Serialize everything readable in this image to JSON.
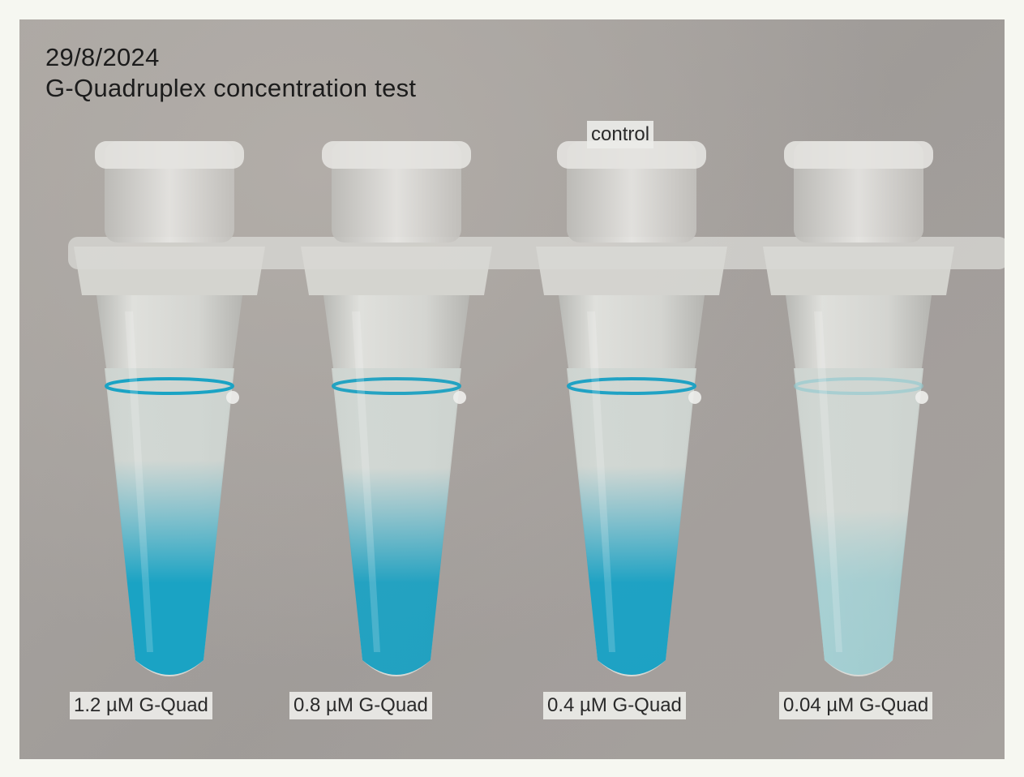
{
  "header": {
    "date": "29/8/2024",
    "title": "G-Quadruplex concentration test"
  },
  "control_label": "control",
  "tubes": [
    {
      "label": "1.2 µM G-Quad",
      "color": "#1aa3c4",
      "intensity": 1.0
    },
    {
      "label": "0.8 µM G-Quad",
      "color": "#1a9fc0",
      "intensity": 0.9
    },
    {
      "label": "0.4 µM G-Quad",
      "color": "#17a0c3",
      "intensity": 0.92
    },
    {
      "label": "0.04 µM G-Quad",
      "color": "#8fc9cf",
      "intensity": 0.35
    }
  ],
  "colors": {
    "frame": "#f6f7f1",
    "background": "#a8a4a0",
    "liquid_clear": "#cfd6d2"
  }
}
